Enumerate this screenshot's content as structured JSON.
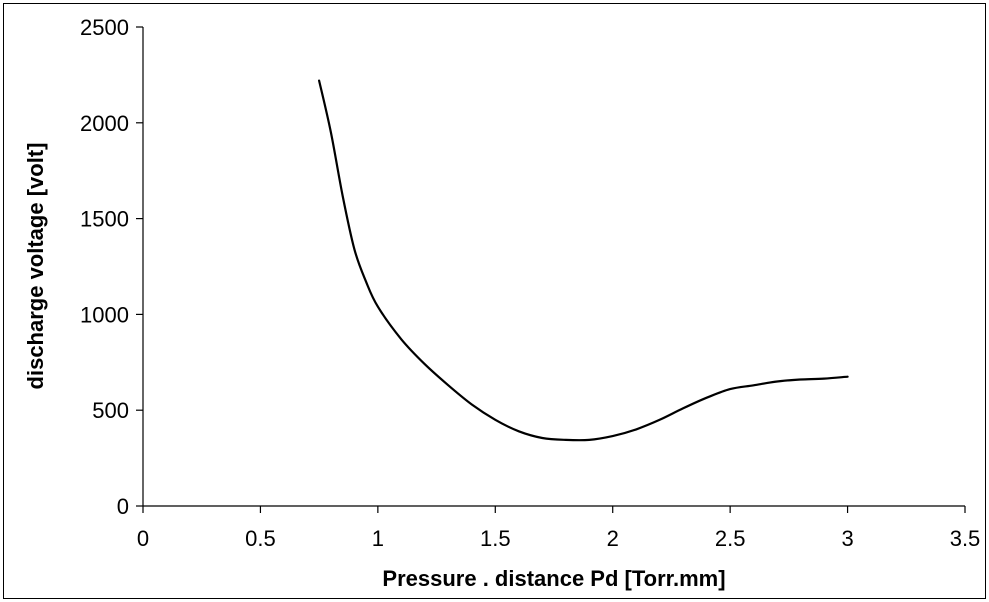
{
  "chart_data": {
    "type": "line",
    "title": "",
    "xlabel": "Pressure . distance Pd  [Torr.mm]",
    "ylabel": "discharge voltage  [volt]",
    "xlim": [
      0,
      3.5
    ],
    "ylim": [
      0,
      2500
    ],
    "xticks": [
      "0",
      "0.5",
      "1",
      "1.5",
      "2",
      "2.5",
      "3",
      "3.5"
    ],
    "yticks": [
      "0",
      "500",
      "1000",
      "1500",
      "2000",
      "2500"
    ],
    "grid": false,
    "legend": "none",
    "line_color": "#000000",
    "series": [
      {
        "x": [
          0.75,
          0.8,
          0.85,
          0.9,
          0.95,
          1.0,
          1.1,
          1.2,
          1.3,
          1.4,
          1.5,
          1.6,
          1.7,
          1.8,
          1.9,
          2.0,
          2.1,
          2.2,
          2.3,
          2.4,
          2.5,
          2.6,
          2.7,
          2.8,
          2.9,
          3.0
        ],
        "y": [
          2220,
          1950,
          1620,
          1340,
          1170,
          1040,
          870,
          740,
          630,
          530,
          450,
          390,
          355,
          345,
          345,
          365,
          400,
          450,
          510,
          565,
          610,
          630,
          650,
          660,
          665,
          675
        ]
      }
    ]
  }
}
